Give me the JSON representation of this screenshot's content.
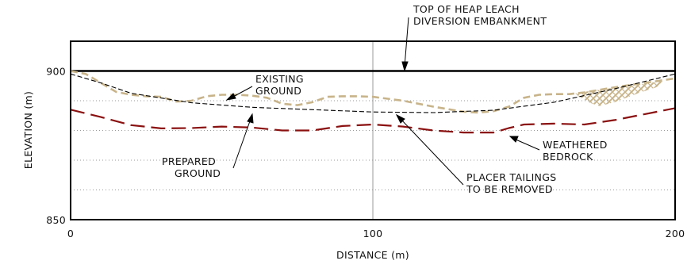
{
  "chart_data": {
    "type": "line",
    "xlabel": "DISTANCE (m)",
    "ylabel": "ELEVATION (m)",
    "xlim": [
      0,
      200
    ],
    "ylim": [
      850,
      900
    ],
    "x_ticks": [
      "0",
      "100",
      "200"
    ],
    "y_ticks": [
      "900",
      "850"
    ],
    "grid": "dotted horizontal, solid vertical at 100",
    "series": [
      {
        "name": "TOP OF HEAP LEACH DIVERSION EMBANKMENT",
        "style": "solid-thick",
        "color": "#000000",
        "points": [
          [
            0,
            900
          ],
          [
            200,
            900
          ]
        ]
      },
      {
        "name": "EXISTING GROUND",
        "style": "dashed",
        "color": "#c8b48a",
        "points": [
          [
            0,
            900
          ],
          [
            5,
            899
          ],
          [
            10,
            896
          ],
          [
            15,
            893
          ],
          [
            20,
            892
          ],
          [
            25,
            891.5
          ],
          [
            30,
            891.3
          ],
          [
            35,
            889.7
          ],
          [
            40,
            890
          ],
          [
            45,
            891.5
          ],
          [
            50,
            892
          ],
          [
            55,
            892
          ],
          [
            60,
            891.7
          ],
          [
            65,
            891
          ],
          [
            70,
            889
          ],
          [
            75,
            888.5
          ],
          [
            80,
            889.5
          ],
          [
            85,
            891.3
          ],
          [
            90,
            891.5
          ],
          [
            95,
            891.5
          ],
          [
            100,
            891.3
          ],
          [
            110,
            890
          ],
          [
            120,
            888
          ],
          [
            130,
            886.3
          ],
          [
            135,
            886
          ],
          [
            140,
            886.5
          ],
          [
            145,
            888
          ],
          [
            150,
            891
          ],
          [
            155,
            892
          ],
          [
            160,
            892.2
          ],
          [
            165,
            892.2
          ],
          [
            170,
            892.8
          ],
          [
            180,
            894.5
          ],
          [
            190,
            896
          ],
          [
            200,
            897.5
          ]
        ]
      },
      {
        "name": "PREPARED GROUND",
        "style": "dashed-thin",
        "color": "#000000",
        "points": [
          [
            0,
            899
          ],
          [
            10,
            896
          ],
          [
            20,
            892.5
          ],
          [
            40,
            889.3
          ],
          [
            60,
            887.8
          ],
          [
            80,
            887
          ],
          [
            100,
            886.2
          ],
          [
            120,
            886
          ],
          [
            140,
            886.8
          ],
          [
            160,
            889.5
          ],
          [
            180,
            894
          ],
          [
            200,
            899
          ]
        ]
      },
      {
        "name": "WEATHERED BEDROCK",
        "style": "long-dash",
        "color": "#8b1010",
        "points": [
          [
            0,
            887
          ],
          [
            10,
            884.5
          ],
          [
            20,
            881.8
          ],
          [
            30,
            880.7
          ],
          [
            40,
            880.8
          ],
          [
            50,
            881.3
          ],
          [
            60,
            881
          ],
          [
            70,
            880
          ],
          [
            80,
            880
          ],
          [
            90,
            881.5
          ],
          [
            100,
            882
          ],
          [
            110,
            881.3
          ],
          [
            120,
            880
          ],
          [
            130,
            879.3
          ],
          [
            140,
            879.3
          ],
          [
            145,
            880.8
          ],
          [
            150,
            882
          ],
          [
            160,
            882.3
          ],
          [
            170,
            882
          ],
          [
            180,
            883.5
          ],
          [
            190,
            885.5
          ],
          [
            200,
            887.5
          ]
        ]
      }
    ],
    "hatched_zone": {
      "name": "PLACER TAILINGS",
      "color": "#c8b48a",
      "points": [
        [
          167,
          892.5
        ],
        [
          172,
          893.3
        ],
        [
          180,
          894.4
        ],
        [
          188,
          895.5
        ],
        [
          196,
          896.6
        ],
        [
          194,
          894.6
        ],
        [
          188,
          892.6
        ],
        [
          180,
          889.5
        ],
        [
          175,
          888.2
        ],
        [
          172,
          889.2
        ],
        [
          168,
          891.5
        ]
      ]
    },
    "annotations": [
      {
        "text": [
          "TOP OF HEAP LEACH",
          "DIVERSION EMBANKMENT"
        ]
      },
      {
        "text": [
          "EXISTING",
          "GROUND"
        ]
      },
      {
        "text": [
          "PREPARED",
          "GROUND"
        ]
      },
      {
        "text": [
          "PLACER TAILINGS",
          "TO BE REMOVED"
        ]
      },
      {
        "text": [
          "WEATHERED",
          "BEDROCK"
        ]
      }
    ]
  }
}
